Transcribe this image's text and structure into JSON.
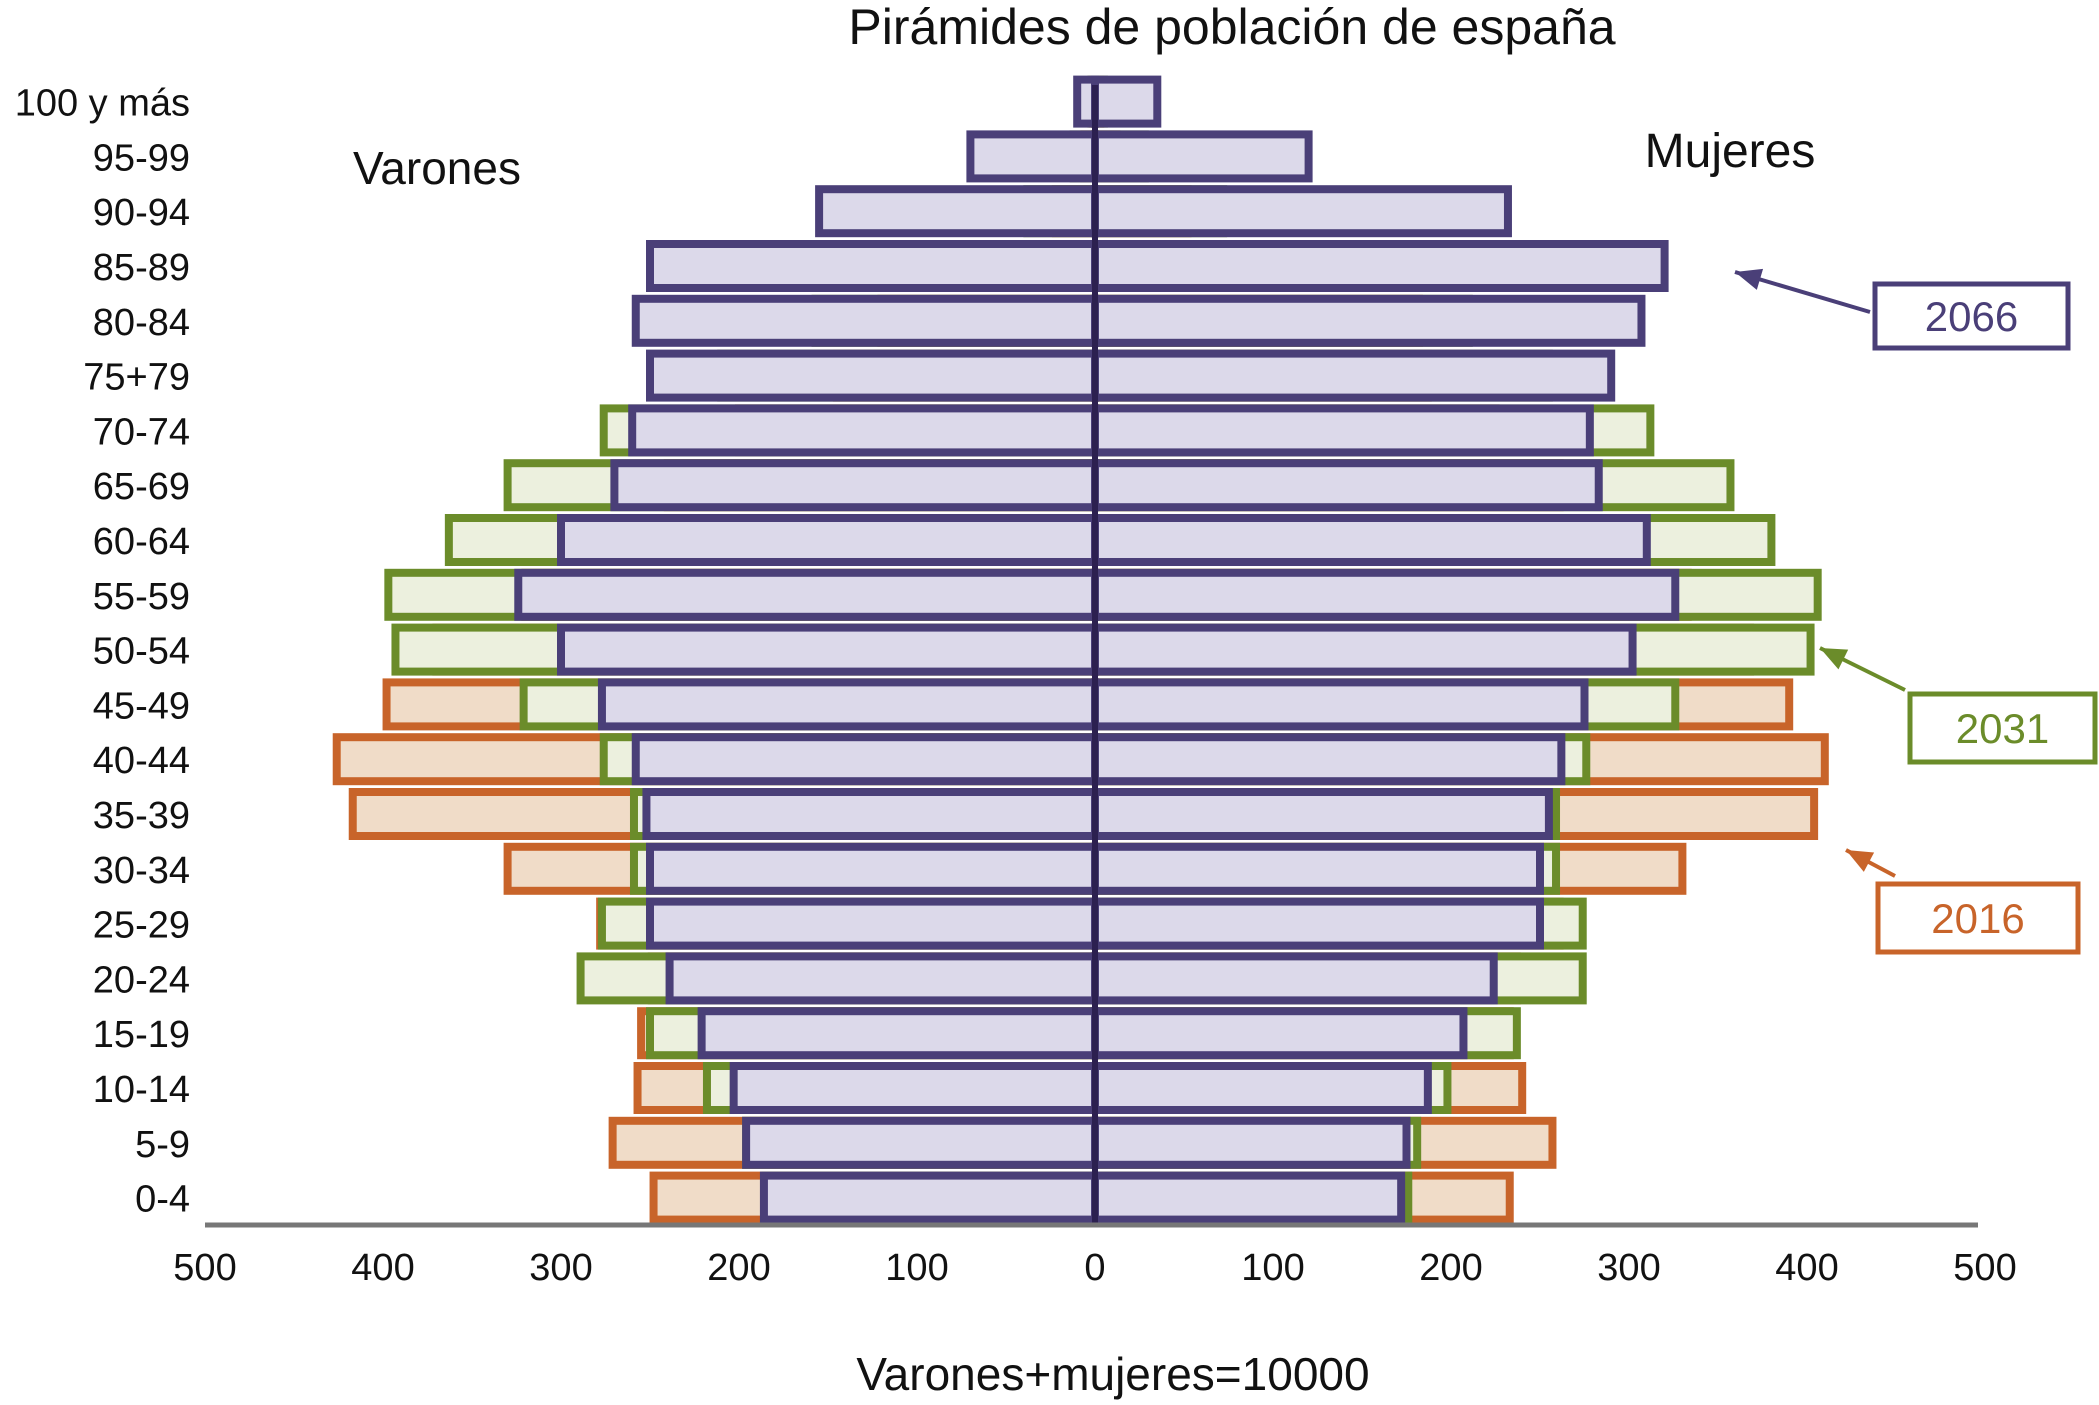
{
  "chart_data": {
    "type": "bar",
    "orientation": "horizontal",
    "layout": "population-pyramid",
    "title": "Pirámides de población de españa",
    "xlabel": "Varones+mujeres=10000",
    "left_label": "Varones",
    "right_label": "Mujeres",
    "xlim": [
      -500,
      500
    ],
    "x_ticks": [
      -500,
      -400,
      -300,
      -200,
      -100,
      0,
      100,
      200,
      300,
      400,
      500
    ],
    "x_tick_labels": [
      "500",
      "400",
      "300",
      "200",
      "100",
      "0",
      "100",
      "200",
      "300",
      "400",
      "500"
    ],
    "grid": false,
    "legend_placement": "right",
    "categories": [
      "0-4",
      "5-9",
      "10-14",
      "15-19",
      "20-24",
      "25-29",
      "30-34",
      "35-39",
      "40-44",
      "45-49",
      "50-54",
      "55-59",
      "60-64",
      "65-69",
      "70-74",
      "75+79",
      "80-84",
      "85-89",
      "90-94",
      "95-99",
      "100 y más"
    ],
    "series": [
      {
        "name": "2016",
        "color": "#c8642a",
        "fill": "#f0dcc8",
        "varones": [
          248,
          271,
          257,
          255,
          249,
          278,
          330,
          417,
          426,
          398,
          370,
          320,
          270,
          240,
          200,
          145,
          120,
          65,
          22,
          6,
          1
        ],
        "mujeres": [
          233,
          257,
          240,
          233,
          237,
          261,
          330,
          404,
          410,
          390,
          368,
          333,
          280,
          261,
          225,
          187,
          182,
          123,
          52,
          12,
          3
        ]
      },
      {
        "name": "2031",
        "color": "#6b8c2a",
        "fill": "#ecf0de",
        "varones": [
          185,
          196,
          218,
          250,
          289,
          277,
          259,
          259,
          276,
          321,
          393,
          397,
          363,
          330,
          276,
          210,
          157,
          95,
          38,
          12,
          2
        ],
        "mujeres": [
          176,
          181,
          198,
          237,
          274,
          274,
          259,
          259,
          276,
          326,
          402,
          406,
          380,
          357,
          312,
          255,
          210,
          145,
          72,
          28,
          5
        ]
      },
      {
        "name": "2066",
        "color": "#4a3f78",
        "fill": "#dcd9ea",
        "varones": [
          186,
          196,
          203,
          221,
          239,
          250,
          250,
          252,
          258,
          277,
          300,
          324,
          300,
          270,
          260,
          250,
          258,
          250,
          155,
          70,
          10
        ],
        "mujeres": [
          172,
          175,
          187,
          207,
          224,
          250,
          250,
          255,
          262,
          275,
          302,
          326,
          310,
          283,
          278,
          290,
          307,
          320,
          232,
          120,
          35
        ]
      }
    ]
  }
}
